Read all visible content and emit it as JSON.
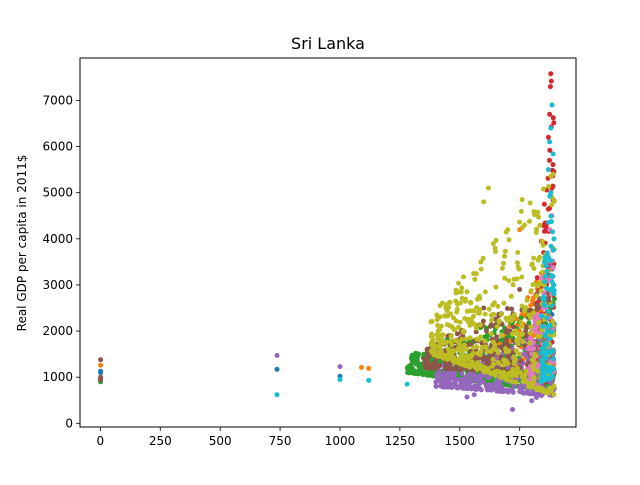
{
  "chart_data": {
    "type": "scatter",
    "title": "Sri Lanka",
    "xlabel": "",
    "ylabel": "Real GDP per capita in 2011$",
    "xlim": [
      -85,
      1985
    ],
    "ylim": [
      -80,
      7920
    ],
    "xticks": [
      0,
      250,
      500,
      750,
      1000,
      1250,
      1500,
      1750
    ],
    "xtick_labels": [
      "0",
      "250",
      "500",
      "750",
      "1000",
      "1250",
      "1500",
      "1750"
    ],
    "yticks": [
      0,
      1000,
      2000,
      3000,
      4000,
      5000,
      6000,
      7000
    ],
    "ytick_labels": [
      "0",
      "1000",
      "2000",
      "3000",
      "4000",
      "5000",
      "6000",
      "7000"
    ],
    "grid": false,
    "legend": "none",
    "series": [
      {
        "color": "#1f77b4",
        "points": [
          [
            1,
            1130
          ],
          [
            1,
            1100
          ],
          [
            737,
            1170
          ],
          [
            1000,
            1020
          ],
          [
            1820,
            950
          ],
          [
            1860,
            980
          ],
          [
            1870,
            1150
          ],
          [
            1880,
            3500
          ],
          [
            1884,
            2600
          ],
          [
            1890,
            1300
          ]
        ],
        "cluster": {
          "x": [
            1780,
            1895
          ],
          "ylo_start": 900,
          "ylo_end": 1500,
          "yhi_start": 1100,
          "yhi_end": 4200,
          "n": 50
        }
      },
      {
        "color": "#ff7f0e",
        "points": [
          [
            1,
            1260
          ],
          [
            1090,
            1210
          ],
          [
            1120,
            1190
          ],
          [
            1600,
            2100
          ],
          [
            1700,
            1150
          ],
          [
            1750,
            4200
          ],
          [
            1800,
            1900
          ]
        ],
        "cluster": {
          "x": [
            1630,
            1895
          ],
          "ylo_start": 1150,
          "ylo_end": 800,
          "yhi_start": 1600,
          "yhi_end": 3700,
          "n": 230
        }
      },
      {
        "color": "#2ca02c",
        "points": [
          [
            1,
            920
          ],
          [
            1,
            900
          ],
          [
            1890,
            2600
          ],
          [
            1895,
            2700
          ],
          [
            1830,
            1300
          ]
        ],
        "cluster": {
          "x": [
            1280,
            1895
          ],
          "ylo_start": 1100,
          "ylo_end": 700,
          "yhi_start": 1500,
          "yhi_end": 2700,
          "n": 520
        }
      },
      {
        "color": "#d62728",
        "points": [
          [
            1,
            960
          ],
          [
            1880,
            7580
          ],
          [
            1882,
            7420
          ],
          [
            1878,
            7300
          ],
          [
            1875,
            6700
          ],
          [
            1870,
            6200
          ],
          [
            1885,
            5100
          ],
          [
            1860,
            4300
          ],
          [
            1850,
            3700
          ],
          [
            1840,
            2600
          ]
        ],
        "cluster": {
          "x": [
            1820,
            1895
          ],
          "ylo_start": 800,
          "ylo_end": 1000,
          "yhi_start": 3000,
          "yhi_end": 7600,
          "n": 110
        }
      },
      {
        "color": "#9467bd",
        "points": [
          [
            737,
            1470
          ],
          [
            1000,
            1230
          ],
          [
            1530,
            570
          ],
          [
            1560,
            620
          ],
          [
            1720,
            300
          ],
          [
            1800,
            490
          ],
          [
            1820,
            560
          ],
          [
            1840,
            600
          ],
          [
            1880,
            3400
          ]
        ],
        "cluster": {
          "x": [
            1400,
            1895
          ],
          "ylo_start": 800,
          "ylo_end": 600,
          "yhi_start": 1250,
          "yhi_end": 2000,
          "n": 340
        }
      },
      {
        "color": "#8c564b",
        "points": [
          [
            1,
            1380
          ],
          [
            1,
            1000
          ],
          [
            1,
            940
          ],
          [
            1600,
            2500
          ],
          [
            1650,
            2100
          ],
          [
            1700,
            1700
          ],
          [
            1750,
            2900
          ],
          [
            1850,
            3000
          ]
        ],
        "cluster": {
          "x": [
            1350,
            1895
          ],
          "ylo_start": 1200,
          "ylo_end": 1050,
          "yhi_start": 1650,
          "yhi_end": 3000,
          "n": 300
        }
      },
      {
        "color": "#e377c2",
        "points": [
          [
            1880,
            5000
          ],
          [
            1885,
            4500
          ],
          [
            1875,
            4200
          ],
          [
            1860,
            2500
          ],
          [
            1850,
            2100
          ],
          [
            1800,
            1500
          ]
        ],
        "cluster": {
          "x": [
            1780,
            1895
          ],
          "ylo_start": 800,
          "ylo_end": 1000,
          "yhi_start": 1600,
          "yhi_end": 4600,
          "n": 120
        }
      },
      {
        "color": "#7f7f7f",
        "points": [
          [
            1880,
            2100
          ],
          [
            1860,
            1600
          ],
          [
            1840,
            1800
          ]
        ],
        "cluster": {
          "x": [
            1820,
            1895
          ],
          "ylo_start": 900,
          "ylo_end": 1000,
          "yhi_start": 1500,
          "yhi_end": 2300,
          "n": 40
        }
      },
      {
        "color": "#bcbd22",
        "points": [
          [
            1380,
            2200
          ],
          [
            1620,
            5100
          ],
          [
            1600,
            4800
          ],
          [
            1700,
            4200
          ],
          [
            1760,
            4850
          ],
          [
            1770,
            4300
          ],
          [
            1880,
            5350
          ],
          [
            1890,
            5400
          ],
          [
            1885,
            4900
          ],
          [
            1850,
            3000
          ]
        ],
        "cluster": {
          "x": [
            1380,
            1895
          ],
          "ylo_start": 1500,
          "ylo_end": 600,
          "yhi_start": 2400,
          "yhi_end": 5400,
          "n": 460
        }
      },
      {
        "color": "#17becf",
        "points": [
          [
            737,
            620
          ],
          [
            1000,
            950
          ],
          [
            1120,
            930
          ],
          [
            1280,
            850
          ],
          [
            1880,
            6400
          ],
          [
            1885,
            6900
          ],
          [
            1875,
            6100
          ],
          [
            1870,
            5500
          ],
          [
            1880,
            5000
          ],
          [
            1860,
            3600
          ]
        ],
        "cluster": {
          "x": [
            1840,
            1895
          ],
          "ylo_start": 900,
          "ylo_end": 1000,
          "yhi_start": 2500,
          "yhi_end": 6900,
          "n": 90
        }
      }
    ]
  }
}
